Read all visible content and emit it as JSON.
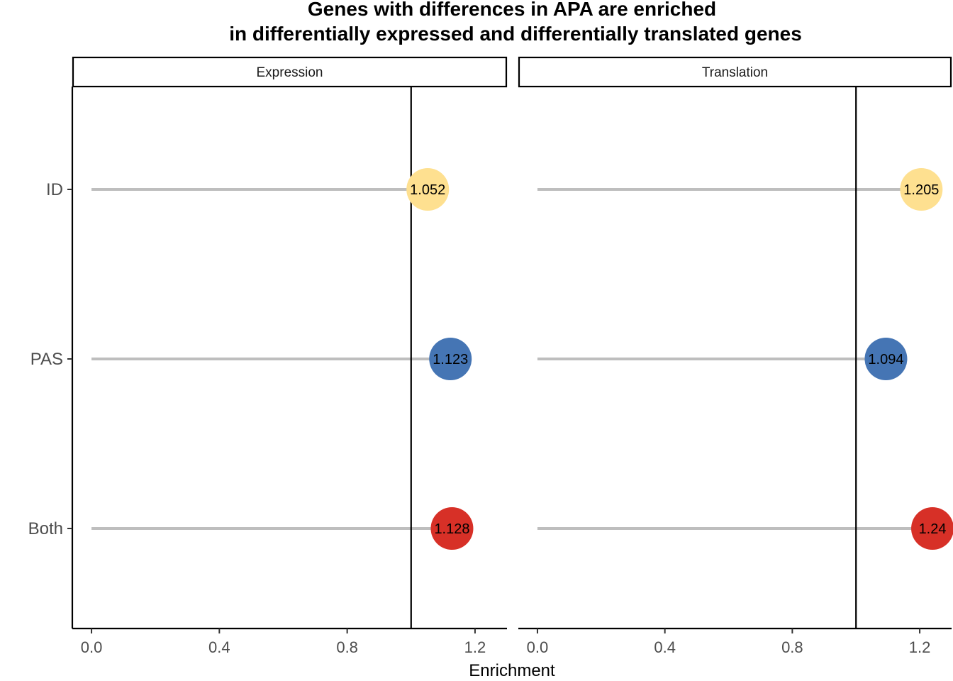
{
  "chart_data": {
    "type": "lollipop",
    "title_lines": [
      "Genes with differences in APA are enriched",
      "in differentially expressed and differentially translated genes"
    ],
    "xlabel": "Enrichment",
    "ylabel": "",
    "xlim": [
      -0.06,
      1.3
    ],
    "xticks": [
      0.0,
      0.4,
      0.8,
      1.2
    ],
    "xtick_labels": [
      "0.0",
      "0.4",
      "0.8",
      "1.2"
    ],
    "reference_line": 1.0,
    "categories": [
      "ID",
      "PAS",
      "Both"
    ],
    "colors": {
      "ID": "#fee090",
      "PAS": "#4575b4",
      "Both": "#d73027"
    },
    "panels": [
      {
        "name": "Expression",
        "values": {
          "ID": 1.052,
          "PAS": 1.123,
          "Both": 1.128
        },
        "labels": {
          "ID": "1.052",
          "PAS": "1.123",
          "Both": "1.128"
        }
      },
      {
        "name": "Translation",
        "values": {
          "ID": 1.205,
          "PAS": 1.094,
          "Both": 1.24
        },
        "labels": {
          "ID": "1.205",
          "PAS": "1.094",
          "Both": "1.24"
        }
      }
    ],
    "grid": false,
    "legend": "none"
  }
}
